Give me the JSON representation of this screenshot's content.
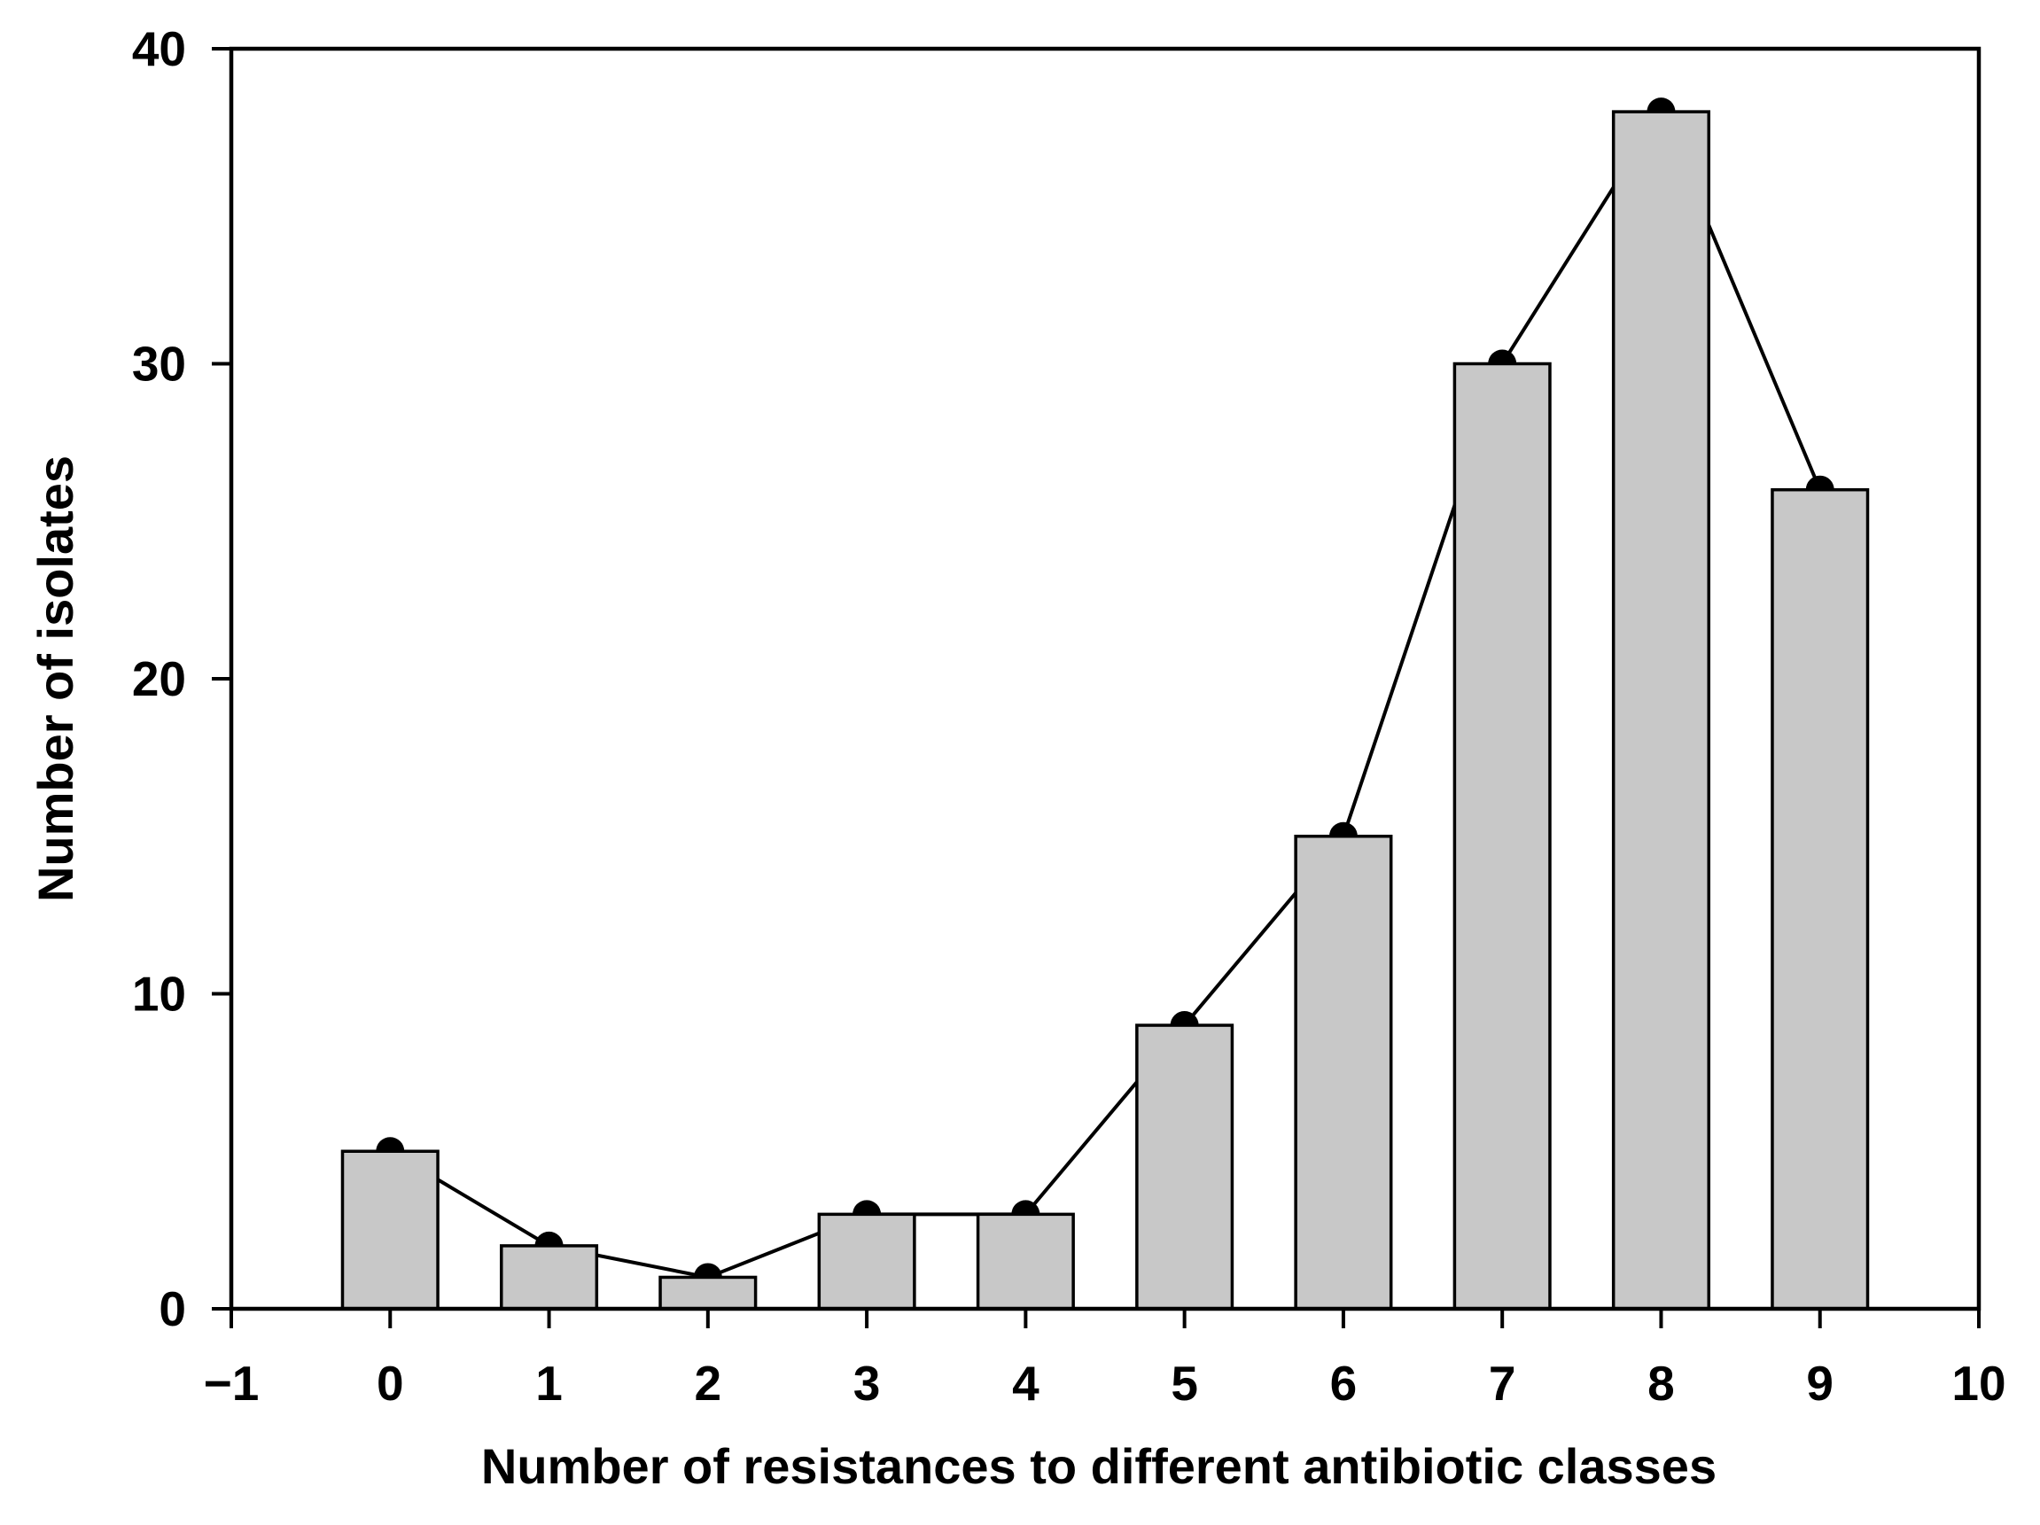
{
  "chart_data": {
    "type": "bar",
    "overlay": "line+scatter",
    "title": "",
    "xlabel": "Number of resistances to different antibiotic classes",
    "ylabel": "Number of isolates",
    "xlim": [
      -1,
      10
    ],
    "ylim": [
      0,
      40
    ],
    "x_ticks": [
      -1,
      0,
      1,
      2,
      3,
      4,
      5,
      6,
      7,
      8,
      9,
      10
    ],
    "x_tick_labels": [
      "−1",
      "0",
      "1",
      "2",
      "3",
      "4",
      "5",
      "6",
      "7",
      "8",
      "9",
      "10"
    ],
    "y_ticks": [
      0,
      10,
      20,
      30,
      40
    ],
    "y_tick_labels": [
      "0",
      "10",
      "20",
      "30",
      "40"
    ],
    "grid": false,
    "legend": false,
    "categories": [
      0,
      1,
      2,
      3,
      4,
      5,
      6,
      7,
      8,
      9
    ],
    "series": [
      {
        "name": "Number of isolates (bars)",
        "type": "bar",
        "values": [
          5,
          2,
          1,
          3,
          3,
          9,
          15,
          30,
          38,
          26
        ]
      },
      {
        "name": "Number of isolates (line with markers)",
        "type": "line",
        "marker": "filled-circle",
        "values": [
          5,
          2,
          1,
          3,
          3,
          9,
          15,
          30,
          38,
          26
        ]
      }
    ],
    "bar_width_fraction": 0.6,
    "colors": {
      "background": "#ffffff",
      "bar_fill": "#c8c8c8",
      "bar_stroke": "#000000",
      "line": "#000000",
      "marker": "#000000",
      "axis": "#000000",
      "text": "#000000"
    }
  }
}
